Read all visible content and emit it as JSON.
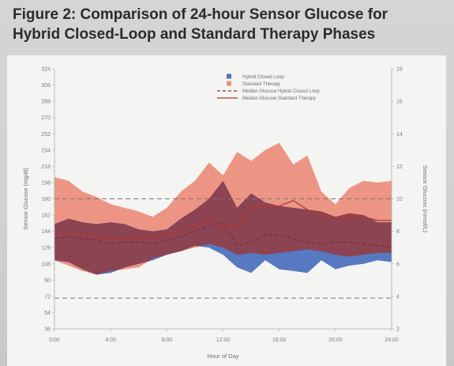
{
  "figure": {
    "title_line1": "Figure 2: Comparison of 24-hour Sensor Glucose for",
    "title_line2": "Hybrid Closed-Loop and Standard Therapy Phases"
  },
  "colors": {
    "hybrid": "#4d72bf",
    "standard": "#ec8f7d",
    "overlap": "#8c4452",
    "median_hybrid": "#7a2e45",
    "median_standard": "#b4372e",
    "reference": "#7a7374"
  },
  "chart_data": {
    "type": "area",
    "title": "",
    "xlabel": "Hour of Day",
    "ylabel": "Sensor Glucose (mg/dl)",
    "y2label": "Sensor Glucose (mmol/L)",
    "xlim": [
      0,
      24
    ],
    "ylim": [
      36,
      324
    ],
    "y2lim": [
      2,
      18
    ],
    "x_ticks": [
      "0:00",
      "4:00",
      "8:00",
      "12:00",
      "16:00",
      "20:00",
      "24:00"
    ],
    "y_ticks": [
      "324",
      "306",
      "288",
      "270",
      "252",
      "234",
      "216",
      "198",
      "180",
      "162",
      "144",
      "126",
      "108",
      "90",
      "72",
      "54",
      "36"
    ],
    "y2_ticks": [
      "18",
      "16",
      "14",
      "12",
      "10",
      "8",
      "6",
      "4",
      "2"
    ],
    "reference_lines": [
      180,
      70
    ],
    "legend": {
      "position": "top-right",
      "entries": [
        "Hybrid Closed Loop",
        "Standard Therapy",
        "Median Glucose Hybrid Closed Loop",
        "Median Glucose Standard Therapy"
      ]
    },
    "x": [
      0,
      1,
      2,
      3,
      4,
      5,
      6,
      7,
      8,
      9,
      10,
      11,
      12,
      13,
      14,
      15,
      16,
      17,
      18,
      19,
      20,
      21,
      22,
      23,
      24
    ],
    "series": [
      {
        "name": "Hybrid Closed Loop",
        "lower": [
          112,
          110,
          102,
          96,
          98,
          104,
          108,
          112,
          118,
          122,
          128,
          126,
          118,
          104,
          98,
          112,
          102,
          100,
          98,
          112,
          102,
          106,
          108,
          112,
          110
        ],
        "upper": [
          152,
          158,
          154,
          152,
          154,
          152,
          146,
          144,
          146,
          158,
          168,
          180,
          200,
          170,
          186,
          176,
          172,
          170,
          168,
          166,
          160,
          164,
          162,
          154,
          154
        ]
      },
      {
        "name": "Standard Therapy",
        "lower": [
          112,
          106,
          100,
          96,
          100,
          102,
          104,
          114,
          118,
          122,
          126,
          130,
          126,
          118,
          120,
          118,
          120,
          122,
          124,
          122,
          118,
          116,
          118,
          120,
          120
        ],
        "upper": [
          204,
          200,
          188,
          182,
          174,
          170,
          166,
          160,
          170,
          188,
          200,
          220,
          206,
          232,
          222,
          234,
          242,
          218,
          228,
          188,
          174,
          192,
          200,
          198,
          200
        ]
      },
      {
        "name": "Median Glucose Hybrid Closed Loop",
        "values": [
          136,
          138,
          136,
          134,
          130,
          132,
          132,
          130,
          134,
          138,
          144,
          150,
          154,
          128,
          132,
          140,
          140,
          136,
          132,
          130,
          132,
          132,
          130,
          128,
          126
        ]
      },
      {
        "name": "Median Glucose Standard Therapy",
        "values": [
          140,
          142,
          140,
          138,
          134,
          136,
          136,
          138,
          140,
          144,
          150,
          158,
          150,
          150,
          170,
          172,
          172,
          178,
          168,
          162,
          158,
          160,
          160,
          156,
          156
        ]
      }
    ]
  }
}
